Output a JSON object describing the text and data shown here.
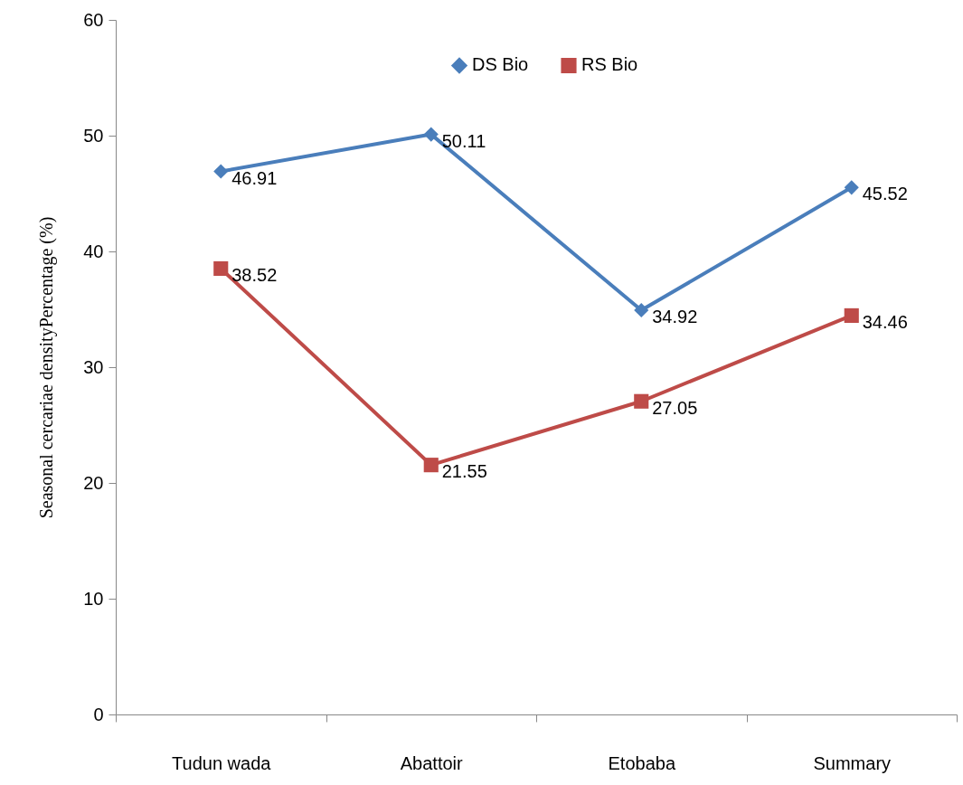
{
  "chart_data": {
    "type": "line",
    "ylabel": "Seasonal cercariae densityPercentage (%)",
    "categories": [
      "Tudun wada",
      "Abattoir",
      "Etobaba",
      "Summary"
    ],
    "series": [
      {
        "name": "DS Bio",
        "color": "#4a7ebb",
        "marker": "diamond",
        "values": [
          46.91,
          50.11,
          34.92,
          45.52
        ]
      },
      {
        "name": "RS Bio",
        "color": "#be4b48",
        "marker": "square",
        "values": [
          38.52,
          21.55,
          27.05,
          34.46
        ]
      }
    ],
    "ylim": [
      0,
      60
    ],
    "yticks": [
      0,
      10,
      20,
      30,
      40,
      50,
      60
    ],
    "grid": false,
    "legend": "top",
    "data_labels": true
  }
}
